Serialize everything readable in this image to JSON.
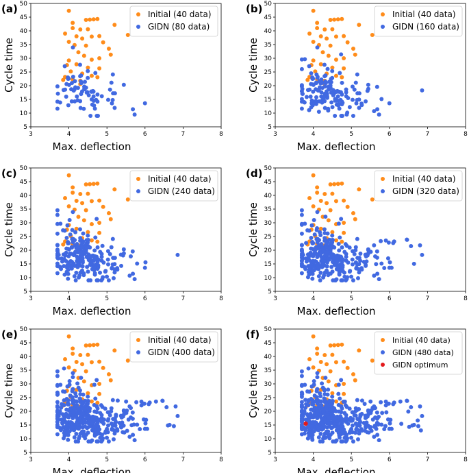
{
  "chart_data": [
    {
      "panel": "(a)",
      "type": "scatter",
      "xlabel": "Max. deflection",
      "ylabel": "Cycle time",
      "xlim": [
        3,
        8
      ],
      "ylim": [
        5,
        50
      ],
      "xticks": [
        "3",
        "4",
        "5",
        "6",
        "7",
        "8"
      ],
      "yticks": [
        "5",
        "10",
        "15",
        "20",
        "25",
        "30",
        "35",
        "40",
        "45",
        "50"
      ],
      "legend_position": "top-right",
      "series": [
        {
          "name": "Initial (40 data)",
          "color": "#ff8c1a",
          "count": 40
        },
        {
          "name": "GIDN (80 data)",
          "color": "#4169e1",
          "count": 80
        }
      ]
    },
    {
      "panel": "(b)",
      "type": "scatter",
      "xlabel": "Max. deflection",
      "ylabel": "Cycle time",
      "xlim": [
        3,
        8
      ],
      "ylim": [
        5,
        50
      ],
      "xticks": [
        "3",
        "4",
        "5",
        "6",
        "7",
        "8"
      ],
      "yticks": [
        "5",
        "10",
        "15",
        "20",
        "25",
        "30",
        "35",
        "40",
        "45",
        "50"
      ],
      "legend_position": "top-right",
      "series": [
        {
          "name": "Initial (40 data)",
          "color": "#ff8c1a",
          "count": 40
        },
        {
          "name": "GIDN (160 data)",
          "color": "#4169e1",
          "count": 160
        }
      ]
    },
    {
      "panel": "(c)",
      "type": "scatter",
      "xlabel": "Max. deflection",
      "ylabel": "Cycle time",
      "xlim": [
        3,
        8
      ],
      "ylim": [
        5,
        50
      ],
      "xticks": [
        "3",
        "4",
        "5",
        "6",
        "7",
        "8"
      ],
      "yticks": [
        "5",
        "10",
        "15",
        "20",
        "25",
        "30",
        "35",
        "40",
        "45",
        "50"
      ],
      "legend_position": "top-right",
      "series": [
        {
          "name": "Initial (40 data)",
          "color": "#ff8c1a",
          "count": 40
        },
        {
          "name": "GIDN (240 data)",
          "color": "#4169e1",
          "count": 240
        }
      ]
    },
    {
      "panel": "(d)",
      "type": "scatter",
      "xlabel": "Max. deflection",
      "ylabel": "Cycle time",
      "xlim": [
        3,
        8
      ],
      "ylim": [
        5,
        50
      ],
      "xticks": [
        "3",
        "4",
        "5",
        "6",
        "7",
        "8"
      ],
      "yticks": [
        "5",
        "10",
        "15",
        "20",
        "25",
        "30",
        "35",
        "40",
        "45",
        "50"
      ],
      "legend_position": "top-right",
      "series": [
        {
          "name": "Initial (40 data)",
          "color": "#ff8c1a",
          "count": 40
        },
        {
          "name": "GIDN (320 data)",
          "color": "#4169e1",
          "count": 320
        }
      ]
    },
    {
      "panel": "(e)",
      "type": "scatter",
      "xlabel": "Max. deflection",
      "ylabel": "Cycle time",
      "xlim": [
        3,
        8
      ],
      "ylim": [
        5,
        50
      ],
      "xticks": [
        "3",
        "4",
        "5",
        "6",
        "7",
        "8"
      ],
      "yticks": [
        "5",
        "10",
        "15",
        "20",
        "25",
        "30",
        "35",
        "40",
        "45",
        "50"
      ],
      "legend_position": "top-right",
      "series": [
        {
          "name": "Initial (40 data)",
          "color": "#ff8c1a",
          "count": 40
        },
        {
          "name": "GIDN (400 data)",
          "color": "#4169e1",
          "count": 400
        }
      ]
    },
    {
      "panel": "(f)",
      "type": "scatter",
      "xlabel": "Max. deflection",
      "ylabel": "Cycle time",
      "xlim": [
        3,
        8
      ],
      "ylim": [
        5,
        50
      ],
      "xticks": [
        "3",
        "4",
        "5",
        "6",
        "7",
        "8"
      ],
      "yticks": [
        "5",
        "10",
        "15",
        "20",
        "25",
        "30",
        "35",
        "40",
        "45",
        "50"
      ],
      "legend_position": "top-right",
      "series": [
        {
          "name": "Initial (40 data)",
          "color": "#ff8c1a",
          "count": 40
        },
        {
          "name": "GIDN (480 data)",
          "color": "#4169e1",
          "count": 480
        },
        {
          "name": "GIDN optimum",
          "color": "#e31a1c",
          "count": 1,
          "points": [
            [
              3.8,
              15.5
            ]
          ]
        }
      ]
    }
  ],
  "initial_points": [
    [
      4.0,
      47.3
    ],
    [
      4.65,
      44.2
    ],
    [
      4.55,
      44.1
    ],
    [
      4.45,
      44.0
    ],
    [
      4.75,
      44.3
    ],
    [
      4.1,
      42.9
    ],
    [
      3.9,
      39.0
    ],
    [
      4.1,
      41.0
    ],
    [
      4.3,
      40.5
    ],
    [
      4.5,
      40.6
    ],
    [
      4.2,
      38.0
    ],
    [
      4.35,
      37.2
    ],
    [
      4.6,
      37.9
    ],
    [
      4.8,
      38.1
    ],
    [
      5.2,
      42.2
    ],
    [
      5.55,
      38.5
    ],
    [
      4.0,
      36.0
    ],
    [
      4.15,
      34.8
    ],
    [
      4.45,
      34.6
    ],
    [
      4.9,
      35.8
    ],
    [
      5.05,
      33.5
    ],
    [
      4.25,
      32.2
    ],
    [
      4.4,
      30.9
    ],
    [
      4.6,
      29.5
    ],
    [
      4.8,
      30.0
    ],
    [
      5.1,
      31.3
    ],
    [
      4.0,
      29.2
    ],
    [
      3.95,
      27.5
    ],
    [
      4.2,
      27.8
    ],
    [
      4.5,
      26.6
    ],
    [
      4.05,
      25.2
    ],
    [
      4.35,
      24.4
    ],
    [
      4.6,
      23.6
    ],
    [
      4.75,
      23.1
    ],
    [
      3.9,
      23.2
    ],
    [
      4.1,
      22.3
    ],
    [
      4.3,
      21.8
    ],
    [
      4.8,
      26.3
    ],
    [
      4.3,
      20.6
    ],
    [
      3.85,
      22.1
    ]
  ]
}
